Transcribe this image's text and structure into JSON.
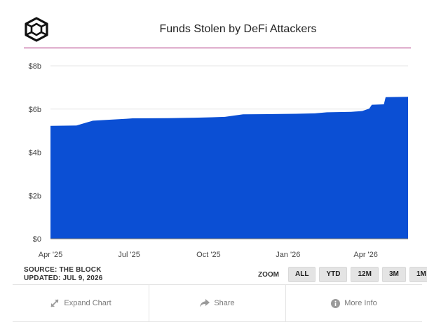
{
  "title": "Funds Stolen by DeFi Attackers",
  "source_line": "SOURCE: THE BLOCK",
  "updated_line": "UPDATED: JUL 9, 2026",
  "zoom": {
    "label": "ZOOM",
    "buttons": [
      "ALL",
      "YTD",
      "12M",
      "3M",
      "1M"
    ]
  },
  "footer": {
    "expand_label": "Expand Chart",
    "share_label": "Share",
    "more_info_label": "More Info"
  },
  "icons": {
    "logo": "the-block-cube-logo",
    "expand": "expand-arrows-icon",
    "share": "share-arrow-icon",
    "info": "info-circle-icon"
  },
  "colors": {
    "area_fill": "#0b4fd4",
    "title_rule": "#a3166f",
    "gridline": "#e6e6e6"
  },
  "chart_data": {
    "type": "area",
    "title": "Funds Stolen by DeFi Attackers",
    "xlabel": "",
    "ylabel": "",
    "y_unit": "b",
    "ylim": [
      0,
      8
    ],
    "y_ticks": [
      0,
      2,
      4,
      6,
      8
    ],
    "y_tick_labels": [
      "$0",
      "$2b",
      "$4b",
      "$6b",
      "$8b"
    ],
    "xlim": [
      "2025-04-01",
      "2026-05-20"
    ],
    "x_ticks": [
      "2025-04-01",
      "2025-07-01",
      "2025-10-01",
      "2026-01-01",
      "2026-04-01"
    ],
    "x_tick_labels": [
      "Apr '25",
      "Jul '25",
      "Oct '25",
      "Jan '26",
      "Apr '26"
    ],
    "grid": true,
    "legend": false,
    "series": [
      {
        "x": [
          "2025-04-01",
          "2025-05-01",
          "2025-05-20",
          "2025-06-01",
          "2025-06-28",
          "2025-07-05",
          "2025-08-15",
          "2025-09-15",
          "2025-10-05",
          "2025-10-20",
          "2025-11-10",
          "2025-12-15",
          "2026-01-10",
          "2026-02-01",
          "2026-02-15",
          "2026-03-15",
          "2026-03-28",
          "2026-04-05",
          "2026-04-08",
          "2026-04-22",
          "2026-04-24",
          "2026-05-20"
        ],
        "values": [
          5.22,
          5.24,
          5.46,
          5.49,
          5.55,
          5.57,
          5.58,
          5.6,
          5.62,
          5.64,
          5.76,
          5.77,
          5.78,
          5.8,
          5.85,
          5.87,
          5.91,
          6.02,
          6.2,
          6.22,
          6.55,
          6.57
        ]
      }
    ]
  }
}
